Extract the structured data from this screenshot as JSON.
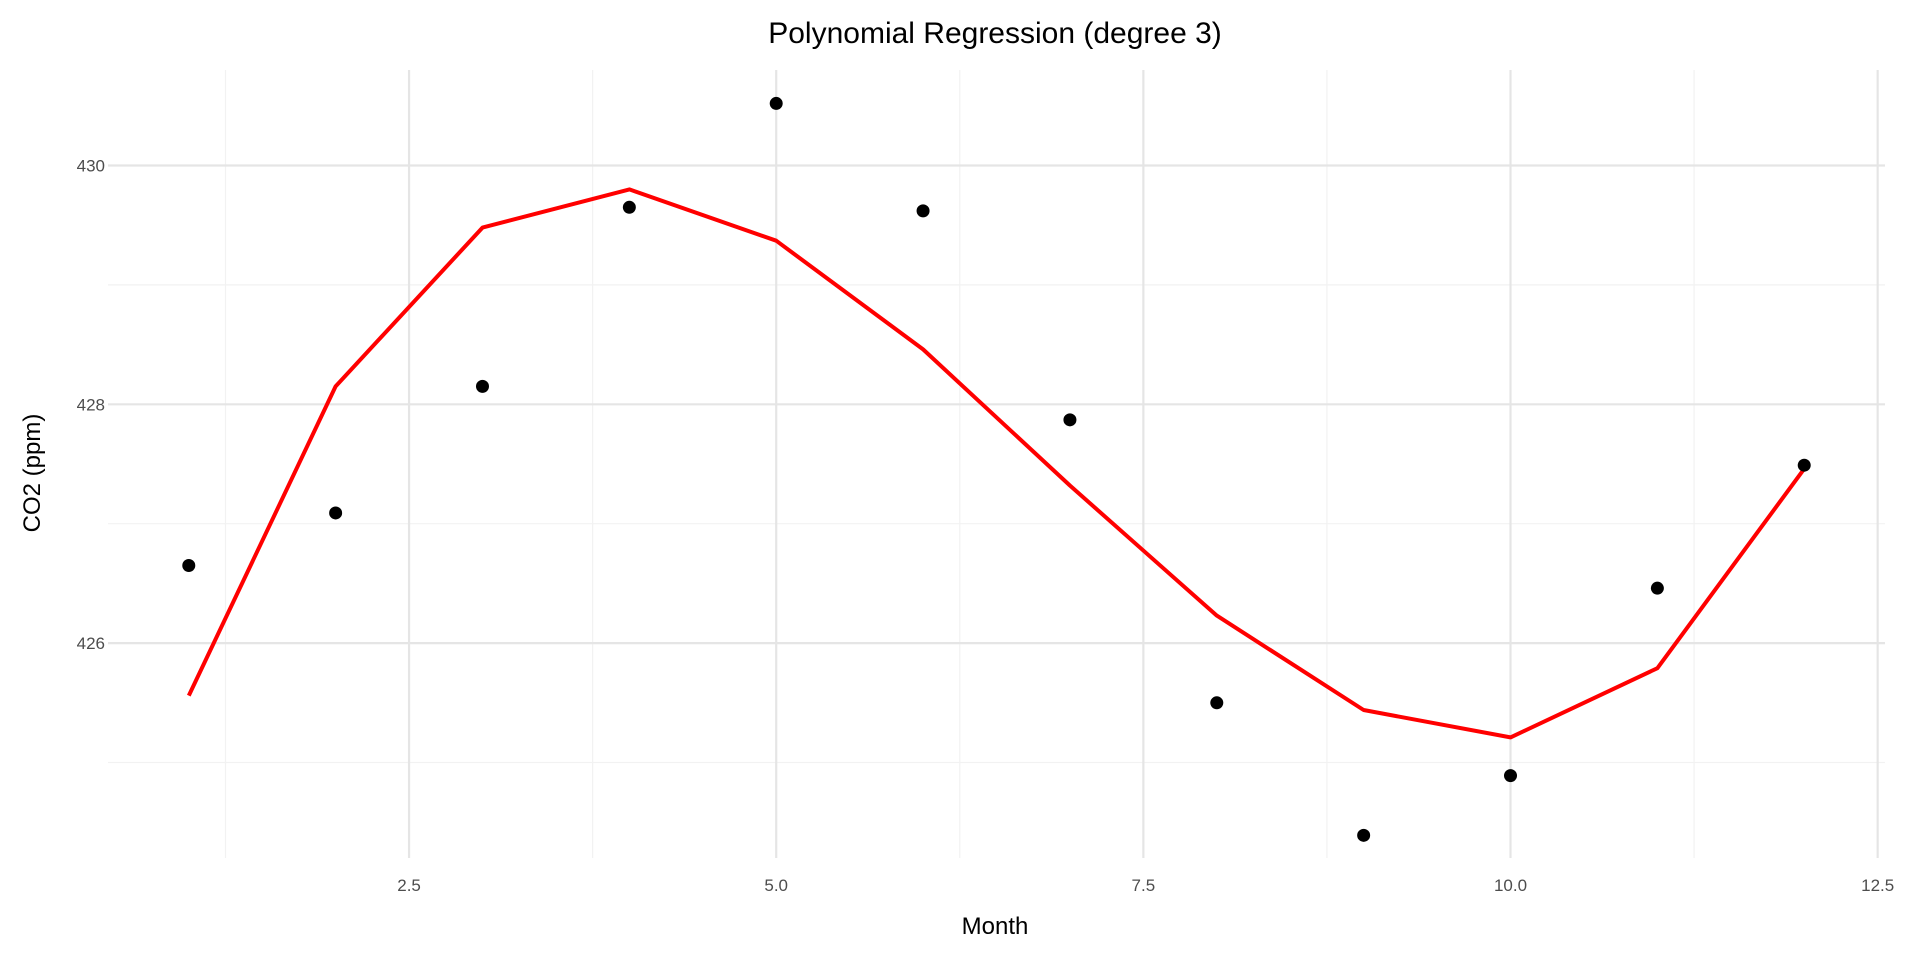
{
  "chart_data": {
    "type": "scatter",
    "title": "Polynomial Regression (degree 3)",
    "xlabel": "Month",
    "ylabel": "CO2 (ppm)",
    "xlim": [
      0.45,
      12.55
    ],
    "ylim": [
      424.2,
      430.8
    ],
    "grid": true,
    "legend": "none",
    "x_ticks": [
      2.5,
      5.0,
      7.5,
      10.0,
      12.5
    ],
    "x_tick_labels": [
      "2.5",
      "5.0",
      "7.5",
      "10.0",
      "12.5"
    ],
    "y_ticks": [
      426,
      428,
      430
    ],
    "y_tick_labels": [
      "426",
      "428",
      "430"
    ],
    "series": [
      {
        "type": "scatter",
        "color": "#000000",
        "x": [
          1,
          2,
          3,
          4,
          5,
          6,
          7,
          8,
          9,
          10,
          11,
          12
        ],
        "values": [
          426.65,
          427.09,
          428.15,
          429.65,
          430.52,
          429.62,
          427.87,
          425.5,
          424.39,
          424.89,
          426.46,
          427.49
        ]
      },
      {
        "type": "line",
        "color": "#ff0000",
        "x": [
          1,
          2,
          3,
          4,
          5,
          6,
          7,
          8,
          9,
          10,
          11,
          12
        ],
        "values": [
          425.56,
          428.15,
          429.48,
          429.8,
          429.37,
          428.46,
          427.32,
          426.23,
          425.44,
          425.21,
          425.79,
          427.46
        ]
      }
    ]
  }
}
